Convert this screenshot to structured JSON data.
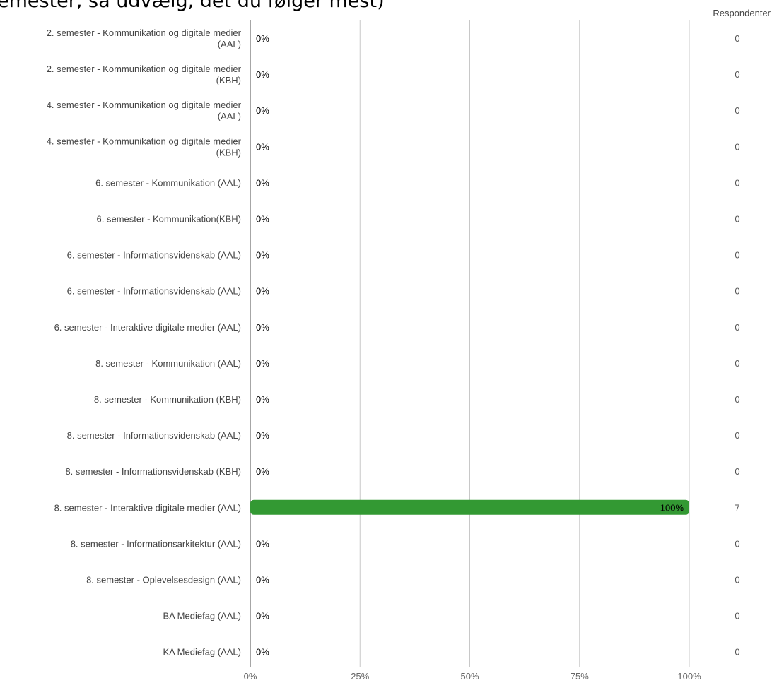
{
  "title": "emester, så udvælg, det du følger mest)",
  "respondents_header": "Respondenter",
  "chart_data": {
    "type": "bar",
    "orientation": "horizontal",
    "categories": [
      [
        "2. semester - Kommunikation og digitale medier",
        "(AAL)"
      ],
      [
        "2. semester - Kommunikation og digitale medier",
        "(KBH)"
      ],
      [
        "4. semester - Kommunikation og digitale medier",
        "(AAL)"
      ],
      [
        "4. semester - Kommunikation og digitale medier",
        "(KBH)"
      ],
      [
        "6. semester - Kommunikation (AAL)"
      ],
      [
        "6. semester - Kommunikation(KBH)"
      ],
      [
        "6. semester - Informationsvidenskab (AAL)"
      ],
      [
        "6. semester - Informationsvidenskab (AAL)"
      ],
      [
        "6. semester - Interaktive digitale medier (AAL)"
      ],
      [
        "8. semester - Kommunikation (AAL)"
      ],
      [
        "8. semester - Kommunikation (KBH)"
      ],
      [
        "8. semester - Informationsvidenskab (AAL)"
      ],
      [
        "8. semester - Informationsvidenskab (KBH)"
      ],
      [
        "8. semester - Interaktive digitale medier (AAL)"
      ],
      [
        "8. semester - Informationsarkitektur (AAL)"
      ],
      [
        "8. semester - Oplevelsesdesign (AAL)"
      ],
      [
        "BA Mediefag (AAL)"
      ],
      [
        "KA Mediefag (AAL)"
      ]
    ],
    "values": [
      0,
      0,
      0,
      0,
      0,
      0,
      0,
      0,
      0,
      0,
      0,
      0,
      0,
      100,
      0,
      0,
      0,
      0
    ],
    "value_labels": [
      "0%",
      "0%",
      "0%",
      "0%",
      "0%",
      "0%",
      "0%",
      "0%",
      "0%",
      "0%",
      "0%",
      "0%",
      "0%",
      "100%",
      "0%",
      "0%",
      "0%",
      "0%"
    ],
    "respondents": [
      0,
      0,
      0,
      0,
      0,
      0,
      0,
      0,
      0,
      0,
      0,
      0,
      0,
      7,
      0,
      0,
      0,
      0
    ],
    "xlim": [
      0,
      100
    ],
    "x_ticks": [
      0,
      25,
      50,
      75,
      100
    ],
    "x_tick_labels": [
      "0%",
      "25%",
      "50%",
      "75%",
      "100%"
    ],
    "bar_color": "#339933",
    "grid": true
  }
}
